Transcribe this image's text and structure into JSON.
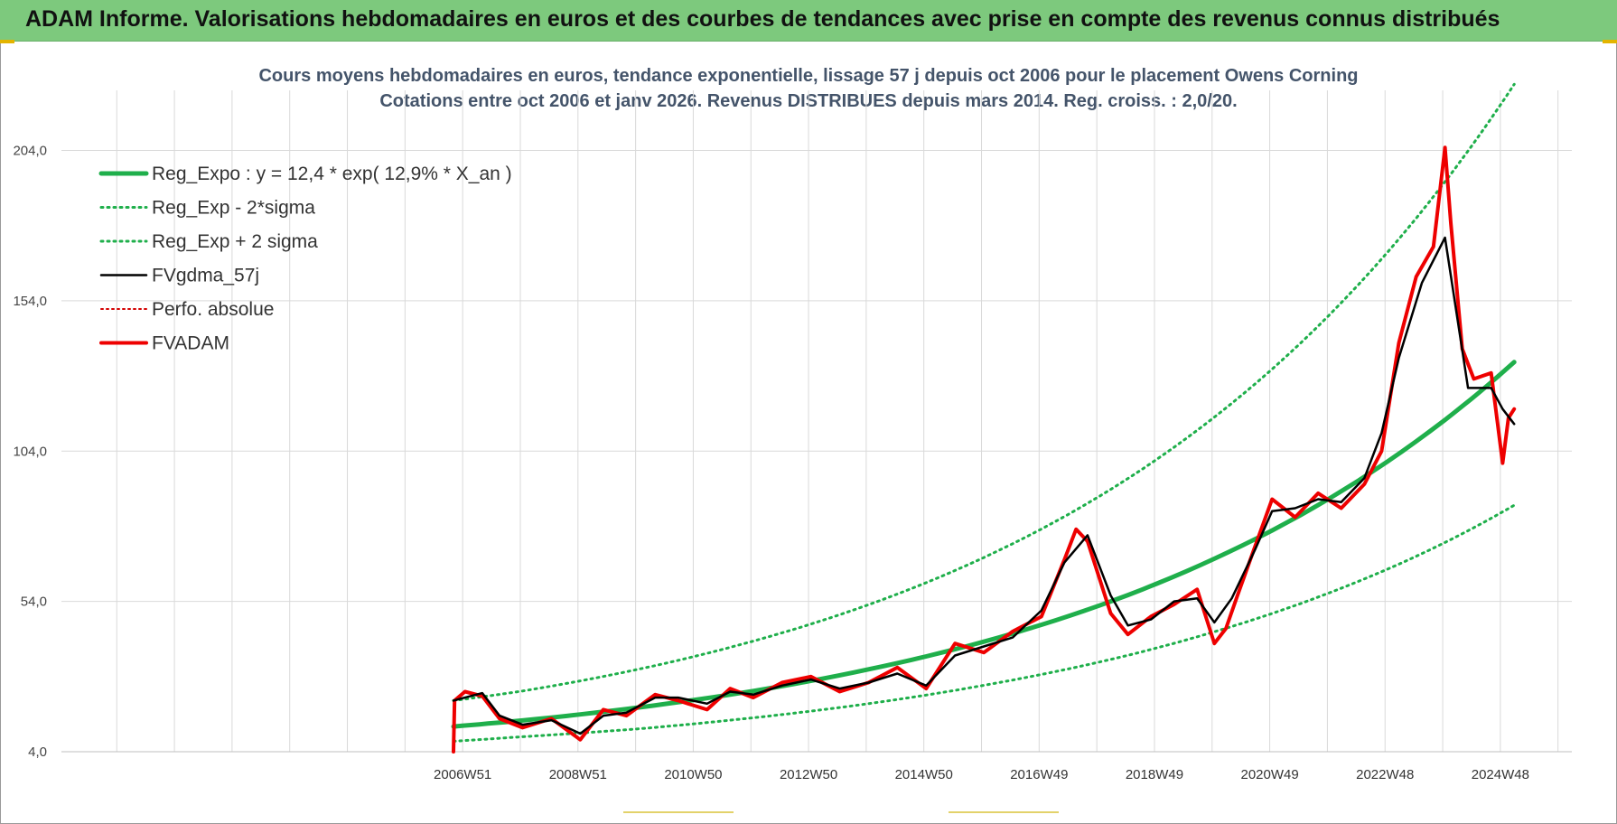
{
  "banner": {
    "title": "ADAM Informe. Valorisations hebdomadaires en euros et des courbes de tendances avec prise en compte des revenus connus distribués"
  },
  "colors": {
    "banner_bg": "#7dc97d",
    "reg_expo": "#1faf4b",
    "sigma_bands": "#1faf4b",
    "fvgdma": "#000000",
    "perfo": "#d40000",
    "fvadam": "#ee0000",
    "title_text": "#44546a"
  },
  "chart_data": {
    "type": "line",
    "title": "Cours moyens hebdomadaires en euros, tendance exponentielle, lissage 57 j depuis oct 2006 pour le placement Owens Corning",
    "subtitle": "Cotations entre oct 2006 et janv 2026. Revenus DISTRIBUES depuis mars 2014. Reg. croiss. : 2,0/20.",
    "xlabel": "",
    "ylabel": "",
    "ylim": [
      4,
      224
    ],
    "y_ticks": [
      "4,0",
      "54,0",
      "104,0",
      "154,0",
      "204,0"
    ],
    "y_tick_values": [
      4,
      54,
      104,
      154,
      204
    ],
    "x_range": [
      2000.0,
      2026.2
    ],
    "x_ticks": [
      "2006W51",
      "2008W51",
      "2010W50",
      "2012W50",
      "2014W50",
      "2016W49",
      "2018W49",
      "2020W49",
      "2022W48",
      "2024W48"
    ],
    "x_tick_values": [
      2006.96,
      2008.96,
      2010.96,
      2012.96,
      2014.96,
      2016.96,
      2018.96,
      2020.96,
      2022.96,
      2024.96
    ],
    "grid": true,
    "legend_position": "top-left",
    "series": [
      {
        "name": "Reg_Expo : y = 12,4 * exp( 12,9% *  X_an )",
        "style": "solid-thick",
        "x": [
          2006.8,
          2008,
          2010,
          2012,
          2014,
          2016,
          2018,
          2020,
          2022,
          2024,
          2025.2
        ],
        "y": [
          12.4,
          14.4,
          18.7,
          24.2,
          31.4,
          40.6,
          52.6,
          68.2,
          88.3,
          114.4,
          133.6
        ]
      },
      {
        "name": "Reg_Exp - 2*sigma",
        "style": "dotted",
        "x": [
          2006.8,
          2008,
          2010,
          2012,
          2014,
          2016,
          2018,
          2020,
          2022,
          2024,
          2025.2
        ],
        "y": [
          7.5,
          9.0,
          11.6,
          15.3,
          20.0,
          26.1,
          33.8,
          43.9,
          56.9,
          73.6,
          86.0
        ]
      },
      {
        "name": "Reg_Exp + 2 sigma",
        "style": "dotted",
        "x": [
          2006.8,
          2008,
          2010,
          2012,
          2014,
          2016,
          2018,
          2020,
          2022,
          2024,
          2025.2
        ],
        "y": [
          21.0,
          24.2,
          31.4,
          40.8,
          52.9,
          68.6,
          88.9,
          115.3,
          149.4,
          193.6,
          226.0
        ]
      },
      {
        "name": "FVgdma_57j",
        "style": "solid",
        "x": [
          2006.8,
          2007.0,
          2007.3,
          2007.6,
          2008.0,
          2008.5,
          2009.0,
          2009.4,
          2009.8,
          2010.3,
          2010.7,
          2011.2,
          2011.6,
          2012.0,
          2012.5,
          2013.0,
          2013.5,
          2014.0,
          2014.5,
          2015.0,
          2015.5,
          2016.0,
          2016.5,
          2017.0,
          2017.4,
          2017.8,
          2018.2,
          2018.5,
          2018.9,
          2019.3,
          2019.7,
          2020.0,
          2020.3,
          2020.7,
          2021.0,
          2021.4,
          2021.8,
          2022.2,
          2022.6,
          2022.9,
          2023.2,
          2023.6,
          2024.0,
          2024.4,
          2024.8,
          2025.0,
          2025.2
        ],
        "y": [
          21.0,
          22.0,
          23.5,
          16.0,
          13.0,
          14.5,
          10.0,
          16.0,
          17.0,
          22.0,
          22.0,
          20.0,
          24.0,
          23.0,
          26.0,
          28.0,
          25.0,
          27.0,
          30.0,
          26.0,
          36.0,
          39.0,
          42.0,
          51.0,
          67.0,
          76.0,
          56.0,
          46.0,
          48.0,
          54.0,
          55.0,
          47.0,
          55.0,
          71.0,
          84.0,
          85.0,
          88.0,
          87.0,
          95.0,
          110.0,
          135.0,
          160.0,
          175.0,
          125.0,
          125.0,
          118.0,
          113.0
        ]
      },
      {
        "name": "Perfo. absolue",
        "style": "dotted",
        "x": [],
        "y": []
      },
      {
        "name": "FVADAM",
        "style": "solid-thick",
        "x": [
          2006.8,
          2006.82,
          2007.0,
          2007.3,
          2007.6,
          2008.0,
          2008.5,
          2009.0,
          2009.4,
          2009.8,
          2010.3,
          2010.7,
          2011.2,
          2011.6,
          2012.0,
          2012.5,
          2013.0,
          2013.5,
          2014.0,
          2014.5,
          2015.0,
          2015.5,
          2016.0,
          2016.5,
          2017.0,
          2017.4,
          2017.6,
          2017.8,
          2018.2,
          2018.5,
          2018.9,
          2019.3,
          2019.7,
          2020.0,
          2020.2,
          2020.4,
          2020.7,
          2021.0,
          2021.4,
          2021.8,
          2022.2,
          2022.6,
          2022.9,
          2023.2,
          2023.5,
          2023.8,
          2024.0,
          2024.1,
          2024.3,
          2024.5,
          2024.8,
          2025.0,
          2025.1,
          2025.2
        ],
        "y": [
          4.0,
          21.0,
          24.0,
          22.5,
          15.0,
          12.0,
          15.0,
          8.0,
          18.0,
          16.0,
          23.0,
          21.0,
          18.0,
          25.0,
          22.0,
          27.0,
          29.0,
          24.0,
          27.0,
          32.0,
          25.0,
          40.0,
          37.0,
          44.0,
          49.0,
          68.0,
          78.0,
          74.0,
          50.0,
          43.0,
          49.0,
          53.0,
          58.0,
          40.0,
          45.0,
          56.0,
          72.0,
          88.0,
          82.0,
          90.0,
          85.0,
          93.0,
          104.0,
          140.0,
          162.0,
          172.0,
          205.0,
          180.0,
          138.0,
          128.0,
          130.0,
          100.0,
          115.0,
          118.0
        ]
      }
    ]
  }
}
